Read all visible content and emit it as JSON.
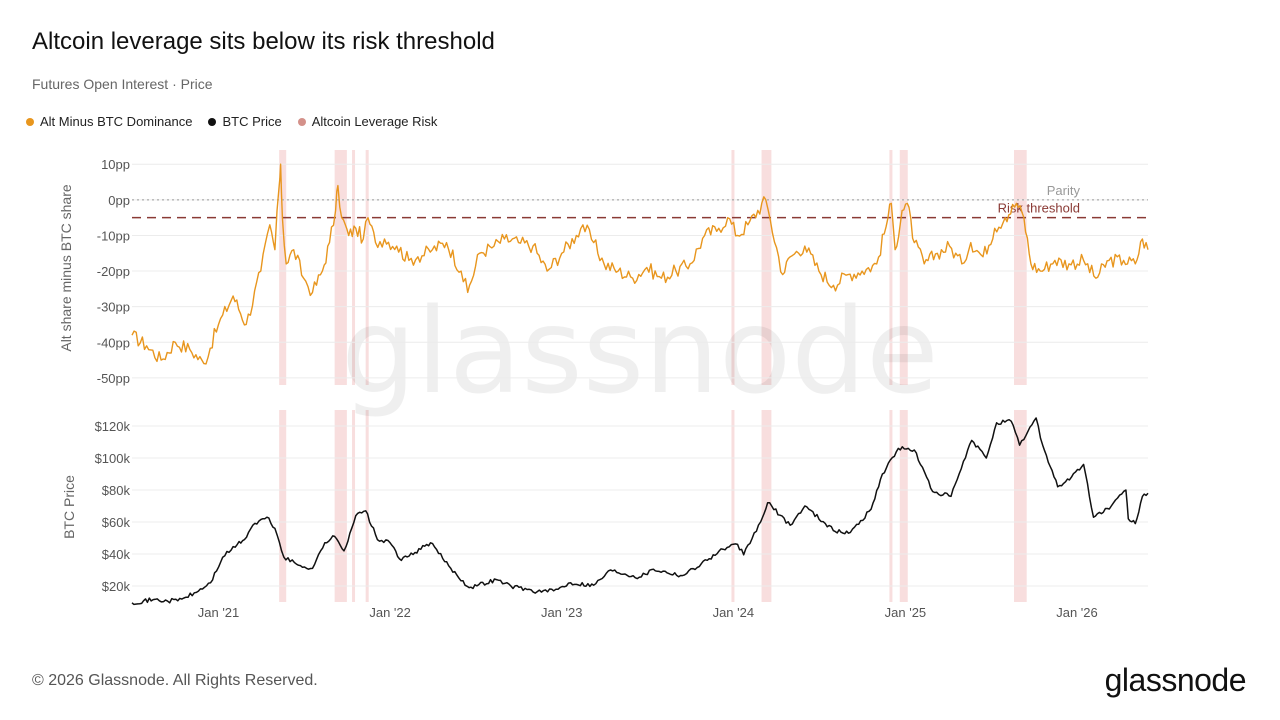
{
  "title": "Altcoin leverage sits below its risk threshold",
  "subtitle": "Futures Open Interest · Price",
  "legend": [
    {
      "label": "Alt Minus BTC Dominance",
      "color": "#e8961e"
    },
    {
      "label": "BTC Price",
      "color": "#111111"
    },
    {
      "label": "Altcoin Leverage Risk",
      "color": "#d4918a"
    }
  ],
  "watermark": "glassnode",
  "footer": {
    "copyright": "© 2026 Glassnode. All Rights Reserved.",
    "logo": "glassnode"
  },
  "chart_data": {
    "type": "line",
    "x_ticks": [
      "Jan '21",
      "Jan '22",
      "Jan '23",
      "Jan '24",
      "Jan '25",
      "Jan '26"
    ],
    "risk_periods": [
      [
        "2021-05-10",
        "2021-05-25"
      ],
      [
        "2021-09-05",
        "2021-10-01"
      ],
      [
        "2021-10-12",
        "2021-10-18"
      ],
      [
        "2021-11-10",
        "2021-11-16"
      ],
      [
        "2023-12-28",
        "2024-01-03"
      ],
      [
        "2024-03-01",
        "2024-03-22"
      ],
      [
        "2024-11-28",
        "2024-12-04"
      ],
      [
        "2024-12-20",
        "2025-01-06"
      ],
      [
        "2025-08-20",
        "2025-09-16"
      ]
    ],
    "top_panel": {
      "ylabel": "Alt share minus BTC share",
      "ylim": [
        -52,
        14
      ],
      "y_ticks": [
        "10pp",
        "0pp",
        "-10pp",
        "-20pp",
        "-30pp",
        "-40pp",
        "-50pp"
      ],
      "parity": {
        "value": 0,
        "label": "Parity"
      },
      "risk_threshold": {
        "value": -5,
        "label": "Risk threshold"
      },
      "series": [
        {
          "name": "Alt Minus BTC Dominance",
          "points": [
            [
              "2020-07-01",
              -38
            ],
            [
              "2020-08-01",
              -41
            ],
            [
              "2020-09-01",
              -45
            ],
            [
              "2020-10-01",
              -40
            ],
            [
              "2020-11-01",
              -42
            ],
            [
              "2020-12-01",
              -46
            ],
            [
              "2021-01-01",
              -35
            ],
            [
              "2021-02-01",
              -27
            ],
            [
              "2021-03-01",
              -35
            ],
            [
              "2021-04-01",
              -20
            ],
            [
              "2021-04-20",
              -7
            ],
            [
              "2021-05-01",
              -14
            ],
            [
              "2021-05-10",
              4
            ],
            [
              "2021-05-13",
              10
            ],
            [
              "2021-05-17",
              -5
            ],
            [
              "2021-05-25",
              -18
            ],
            [
              "2021-06-10",
              -14
            ],
            [
              "2021-07-01",
              -22
            ],
            [
              "2021-07-20",
              -26
            ],
            [
              "2021-08-10",
              -20
            ],
            [
              "2021-08-25",
              -12
            ],
            [
              "2021-09-07",
              -3
            ],
            [
              "2021-09-12",
              4
            ],
            [
              "2021-09-20",
              -5
            ],
            [
              "2021-10-05",
              -10
            ],
            [
              "2021-10-20",
              -8
            ],
            [
              "2021-11-05",
              -11
            ],
            [
              "2021-11-15",
              -5
            ],
            [
              "2021-12-01",
              -12
            ],
            [
              "2021-12-20",
              -11
            ],
            [
              "2022-01-15",
              -13
            ],
            [
              "2022-02-10",
              -17
            ],
            [
              "2022-03-01",
              -16
            ],
            [
              "2022-04-01",
              -14
            ],
            [
              "2022-05-01",
              -12
            ],
            [
              "2022-06-01",
              -20
            ],
            [
              "2022-06-15",
              -26
            ],
            [
              "2022-07-10",
              -15
            ],
            [
              "2022-08-10",
              -13
            ],
            [
              "2022-09-01",
              -11
            ],
            [
              "2022-10-01",
              -12
            ],
            [
              "2022-11-01",
              -13
            ],
            [
              "2022-12-01",
              -20
            ],
            [
              "2023-01-01",
              -15
            ],
            [
              "2023-02-01",
              -10
            ],
            [
              "2023-02-15",
              -7
            ],
            [
              "2023-03-10",
              -12
            ],
            [
              "2023-04-01",
              -18
            ],
            [
              "2023-05-01",
              -20
            ],
            [
              "2023-06-01",
              -22
            ],
            [
              "2023-07-01",
              -19
            ],
            [
              "2023-08-01",
              -22
            ],
            [
              "2023-09-01",
              -20
            ],
            [
              "2023-10-01",
              -18
            ],
            [
              "2023-11-01",
              -10
            ],
            [
              "2023-12-01",
              -8
            ],
            [
              "2023-12-20",
              -5
            ],
            [
              "2024-01-10",
              -10
            ],
            [
              "2024-02-01",
              -7
            ],
            [
              "2024-03-10",
              0
            ],
            [
              "2024-03-20",
              -6
            ],
            [
              "2024-04-15",
              -21
            ],
            [
              "2024-05-01",
              -16
            ],
            [
              "2024-06-01",
              -13
            ],
            [
              "2024-07-01",
              -20
            ],
            [
              "2024-08-01",
              -24
            ],
            [
              "2024-09-01",
              -21
            ],
            [
              "2024-10-01",
              -20
            ],
            [
              "2024-11-01",
              -18
            ],
            [
              "2024-11-25",
              -5
            ],
            [
              "2024-12-02",
              -1
            ],
            [
              "2024-12-10",
              -14
            ],
            [
              "2024-12-25",
              -3
            ],
            [
              "2025-01-05",
              -1
            ],
            [
              "2025-01-20",
              -12
            ],
            [
              "2025-02-10",
              -18
            ],
            [
              "2025-03-10",
              -15
            ],
            [
              "2025-04-05",
              -13
            ],
            [
              "2025-05-01",
              -18
            ],
            [
              "2025-05-20",
              -12
            ],
            [
              "2025-06-15",
              -16
            ],
            [
              "2025-07-10",
              -8
            ],
            [
              "2025-08-01",
              -5
            ],
            [
              "2025-08-25",
              -1
            ],
            [
              "2025-09-10",
              -5
            ],
            [
              "2025-09-25",
              -18
            ],
            [
              "2025-10-15",
              -20
            ],
            [
              "2025-11-15",
              -17
            ],
            [
              "2025-12-15",
              -18
            ],
            [
              "2026-01-15",
              -17
            ],
            [
              "2026-02-10",
              -22
            ],
            [
              "2026-03-10",
              -17
            ],
            [
              "2026-04-10",
              -17
            ],
            [
              "2026-05-05",
              -18
            ],
            [
              "2026-05-20",
              -11
            ],
            [
              "2026-06-01",
              -14
            ]
          ]
        }
      ]
    },
    "bottom_panel": {
      "ylabel": "BTC Price",
      "ylim": [
        10000,
        130000
      ],
      "y_ticks": [
        "$120k",
        "$100k",
        "$80k",
        "$60k",
        "$40k",
        "$20k"
      ],
      "series": [
        {
          "name": "BTC Price",
          "points": [
            [
              "2020-07-01",
              9500
            ],
            [
              "2020-08-15",
              11500
            ],
            [
              "2020-09-15",
              10500
            ],
            [
              "2020-10-15",
              11800
            ],
            [
              "2020-11-15",
              16000
            ],
            [
              "2020-12-15",
              22000
            ],
            [
              "2021-01-10",
              38000
            ],
            [
              "2021-02-10",
              46000
            ],
            [
              "2021-02-25",
              49000
            ],
            [
              "2021-03-15",
              58000
            ],
            [
              "2021-04-14",
              63000
            ],
            [
              "2021-05-01",
              56000
            ],
            [
              "2021-05-20",
              38000
            ],
            [
              "2021-06-20",
              33000
            ],
            [
              "2021-07-20",
              31000
            ],
            [
              "2021-08-15",
              47000
            ],
            [
              "2021-09-05",
              51000
            ],
            [
              "2021-09-25",
              42000
            ],
            [
              "2021-10-20",
              64000
            ],
            [
              "2021-11-10",
              67000
            ],
            [
              "2021-12-05",
              49000
            ],
            [
              "2022-01-01",
              47000
            ],
            [
              "2022-01-25",
              36000
            ],
            [
              "2022-03-28",
              47000
            ],
            [
              "2022-05-10",
              31000
            ],
            [
              "2022-06-18",
              19000
            ],
            [
              "2022-08-15",
              24000
            ],
            [
              "2022-09-15",
              20000
            ],
            [
              "2022-11-10",
              16500
            ],
            [
              "2022-12-15",
              17000
            ],
            [
              "2023-01-20",
              22000
            ],
            [
              "2023-03-10",
              20500
            ],
            [
              "2023-04-15",
              30000
            ],
            [
              "2023-06-15",
              25500
            ],
            [
              "2023-07-15",
              30500
            ],
            [
              "2023-09-15",
              26500
            ],
            [
              "2023-10-25",
              34000
            ],
            [
              "2023-12-10",
              43000
            ],
            [
              "2024-01-10",
              46000
            ],
            [
              "2024-01-23",
              39500
            ],
            [
              "2024-02-28",
              60000
            ],
            [
              "2024-03-14",
              72000
            ],
            [
              "2024-05-01",
              58000
            ],
            [
              "2024-06-01",
              70000
            ],
            [
              "2024-08-05",
              54000
            ],
            [
              "2024-09-06",
              53500
            ],
            [
              "2024-10-20",
              68000
            ],
            [
              "2024-11-13",
              90000
            ],
            [
              "2024-12-17",
              106000
            ],
            [
              "2025-01-20",
              105000
            ],
            [
              "2025-02-28",
              79000
            ],
            [
              "2025-04-08",
              76000
            ],
            [
              "2025-05-22",
              111000
            ],
            [
              "2025-06-22",
              100000
            ],
            [
              "2025-07-14",
              122000
            ],
            [
              "2025-08-14",
              123000
            ],
            [
              "2025-09-01",
              108000
            ],
            [
              "2025-10-06",
              125000
            ],
            [
              "2025-10-20",
              108000
            ],
            [
              "2025-11-21",
              82000
            ],
            [
              "2025-12-20",
              88000
            ],
            [
              "2026-01-15",
              96000
            ],
            [
              "2026-02-05",
              63000
            ],
            [
              "2026-03-15",
              70000
            ],
            [
              "2026-04-15",
              80000
            ],
            [
              "2026-04-20",
              62000
            ],
            [
              "2026-05-05",
              59000
            ],
            [
              "2026-05-20",
              76000
            ],
            [
              "2026-06-01",
              78000
            ]
          ]
        }
      ]
    }
  }
}
